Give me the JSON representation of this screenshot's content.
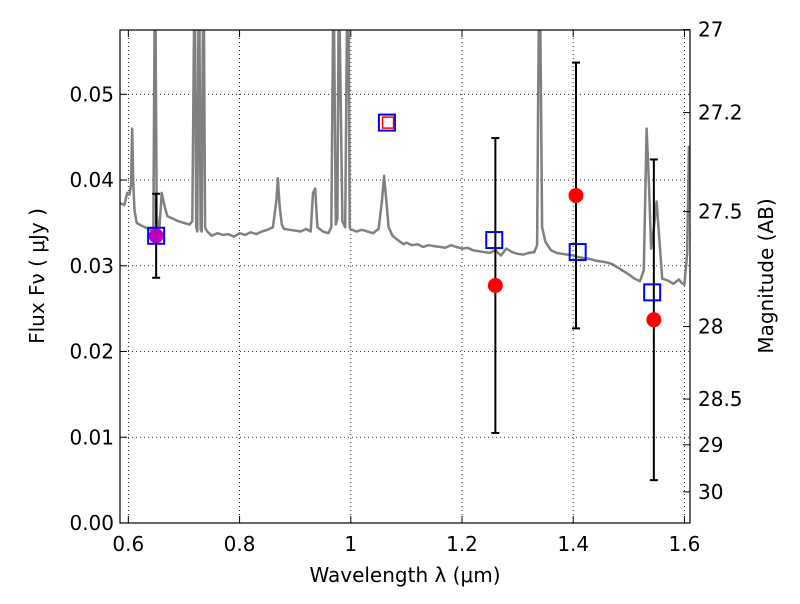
{
  "chart_data": {
    "type": "scatter",
    "title": "",
    "xlabel": "Wavelength  λ (μm)",
    "ylabel": "Flux  Fν  ( μJy )",
    "y2label": "Magnitude (AB)",
    "xlim": [
      0.585,
      1.61
    ],
    "ylim": [
      0.0,
      0.0575
    ],
    "grid": true,
    "xticks": [
      {
        "value": 0.6,
        "label": "0.6"
      },
      {
        "value": 0.8,
        "label": "0.8"
      },
      {
        "value": 1.0,
        "label": "1"
      },
      {
        "value": 1.2,
        "label": "1.2"
      },
      {
        "value": 1.4,
        "label": "1.4"
      },
      {
        "value": 1.6,
        "label": "1.6"
      }
    ],
    "yticks": [
      {
        "value": 0.0,
        "label": "0.00"
      },
      {
        "value": 0.01,
        "label": "0.01"
      },
      {
        "value": 0.02,
        "label": "0.02"
      },
      {
        "value": 0.03,
        "label": "0.03"
      },
      {
        "value": 0.04,
        "label": "0.04"
      },
      {
        "value": 0.05,
        "label": "0.05"
      }
    ],
    "y2ticks": [
      {
        "mag": 27.0,
        "label": "27"
      },
      {
        "mag": 27.2,
        "label": "27.2"
      },
      {
        "mag": 27.5,
        "label": "27.5"
      },
      {
        "mag": 28.0,
        "label": "28"
      },
      {
        "mag": 28.5,
        "label": "28.5"
      },
      {
        "mag": 29.0,
        "label": "29"
      },
      {
        "mag": 30.0,
        "label": "30"
      }
    ],
    "series": [
      {
        "kind": "line",
        "color": "#808080",
        "x": [
          0.585,
          0.593,
          0.598,
          0.602,
          0.605,
          0.607,
          0.609,
          0.611,
          0.615,
          0.62,
          0.63,
          0.64,
          0.645,
          0.647,
          0.649,
          0.651,
          0.653,
          0.656,
          0.66,
          0.665,
          0.67,
          0.68,
          0.69,
          0.7,
          0.71,
          0.715,
          0.718,
          0.72,
          0.722,
          0.724,
          0.726,
          0.728,
          0.73,
          0.732,
          0.734,
          0.736,
          0.738,
          0.74,
          0.742,
          0.745,
          0.75,
          0.76,
          0.77,
          0.78,
          0.79,
          0.8,
          0.81,
          0.82,
          0.83,
          0.84,
          0.85,
          0.86,
          0.866,
          0.869,
          0.872,
          0.876,
          0.88,
          0.89,
          0.9,
          0.91,
          0.92,
          0.928,
          0.932,
          0.936,
          0.94,
          0.95,
          0.96,
          0.965,
          0.968,
          0.97,
          0.973,
          0.976,
          0.978,
          0.98,
          0.985,
          0.99,
          0.993,
          0.996,
          0.998,
          1.0,
          1.003,
          1.006,
          1.01,
          1.02,
          1.03,
          1.04,
          1.05,
          1.056,
          1.06,
          1.064,
          1.068,
          1.075,
          1.085,
          1.095,
          1.1,
          1.11,
          1.12,
          1.13,
          1.14,
          1.15,
          1.16,
          1.17,
          1.18,
          1.19,
          1.2,
          1.21,
          1.22,
          1.23,
          1.24,
          1.25,
          1.26,
          1.27,
          1.28,
          1.29,
          1.3,
          1.31,
          1.32,
          1.33,
          1.335,
          1.338,
          1.341,
          1.344,
          1.35,
          1.36,
          1.37,
          1.38,
          1.39,
          1.4,
          1.41,
          1.42,
          1.43,
          1.44,
          1.45,
          1.46,
          1.47,
          1.48,
          1.49,
          1.5,
          1.51,
          1.52,
          1.527,
          1.532,
          1.536,
          1.54,
          1.545,
          1.55,
          1.56,
          1.57,
          1.58,
          1.59,
          1.595,
          1.6,
          1.605,
          1.608
        ],
        "y": [
          0.0373,
          0.0371,
          0.0385,
          0.0383,
          0.0395,
          0.046,
          0.0395,
          0.0365,
          0.035,
          0.0348,
          0.0345,
          0.0342,
          0.0345,
          0.0575,
          0.0575,
          0.036,
          0.0345,
          0.0345,
          0.0385,
          0.037,
          0.0358,
          0.0355,
          0.0352,
          0.035,
          0.0348,
          0.0352,
          0.0575,
          0.0575,
          0.0345,
          0.034,
          0.0575,
          0.0575,
          0.0342,
          0.034,
          0.0575,
          0.0575,
          0.0345,
          0.0342,
          0.034,
          0.0338,
          0.0335,
          0.0338,
          0.0336,
          0.0337,
          0.0334,
          0.0338,
          0.0336,
          0.0339,
          0.0337,
          0.034,
          0.0342,
          0.0345,
          0.0375,
          0.0402,
          0.037,
          0.0348,
          0.0343,
          0.0342,
          0.0341,
          0.034,
          0.0343,
          0.034,
          0.0385,
          0.039,
          0.0345,
          0.034,
          0.0338,
          0.0345,
          0.0575,
          0.0575,
          0.0348,
          0.0355,
          0.0575,
          0.0575,
          0.0352,
          0.0345,
          0.0575,
          0.0575,
          0.0345,
          0.0342,
          0.0342,
          0.0341,
          0.034,
          0.0342,
          0.034,
          0.0338,
          0.0343,
          0.0375,
          0.0405,
          0.0375,
          0.0345,
          0.0335,
          0.033,
          0.0325,
          0.0327,
          0.0324,
          0.0325,
          0.0322,
          0.0324,
          0.0323,
          0.0322,
          0.0321,
          0.0324,
          0.0322,
          0.032,
          0.0321,
          0.0318,
          0.0317,
          0.0316,
          0.0315,
          0.0318,
          0.0312,
          0.032,
          0.0316,
          0.0314,
          0.0313,
          0.0315,
          0.0316,
          0.0324,
          0.0575,
          0.0575,
          0.0345,
          0.0328,
          0.0318,
          0.0315,
          0.0314,
          0.0313,
          0.0312,
          0.031,
          0.0309,
          0.0308,
          0.0306,
          0.0305,
          0.0304,
          0.0302,
          0.0298,
          0.0294,
          0.029,
          0.0285,
          0.0282,
          0.0295,
          0.046,
          0.04,
          0.032,
          0.0345,
          0.0375,
          0.0285,
          0.0283,
          0.0279,
          0.0284,
          0.028,
          0.0278,
          0.0315,
          0.044
        ]
      },
      {
        "kind": "markers",
        "marker": "circle",
        "color": "#ff0000",
        "x": [
          1.26,
          1.405,
          1.545
        ],
        "y": [
          0.0277,
          0.0382,
          0.0237
        ],
        "error": [
          0.0172,
          0.0155,
          0.0187
        ]
      },
      {
        "kind": "markers",
        "marker": "circle",
        "color": "#bf00bf",
        "x": [
          0.65
        ],
        "y": [
          0.0335
        ],
        "error": [
          0.0049
        ]
      },
      {
        "kind": "markers",
        "marker": "open-square",
        "color": "#0000ff",
        "x": [
          0.65,
          1.065,
          1.258,
          1.408,
          1.542
        ],
        "y": [
          0.0335,
          0.0467,
          0.033,
          0.0316,
          0.0269
        ]
      },
      {
        "kind": "markers",
        "marker": "open-square-small",
        "color": "#ff0000",
        "x": [
          1.067
        ],
        "y": [
          0.0467
        ]
      }
    ]
  }
}
